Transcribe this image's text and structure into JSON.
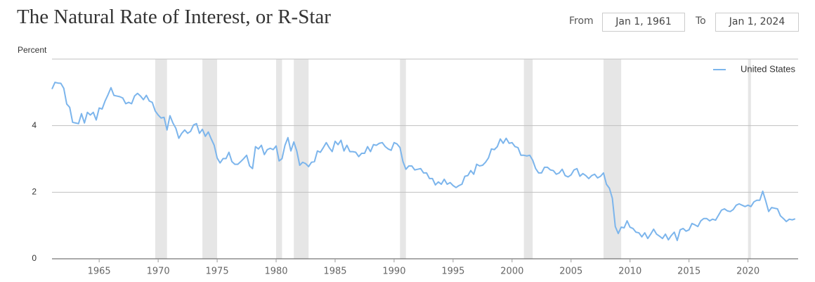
{
  "chart_data": {
    "type": "line",
    "title": "The Natural Rate of Interest, or R-Star",
    "y_axis_label": "Percent",
    "controls": {
      "from_label": "From",
      "from_value": "Jan 1, 1961",
      "to_label": "To",
      "to_value": "Jan 1, 2024"
    },
    "x": [
      1961,
      1961.25,
      1961.5,
      1961.75,
      1962,
      1962.25,
      1962.5,
      1962.75,
      1963,
      1963.25,
      1963.5,
      1963.75,
      1964,
      1964.25,
      1964.5,
      1964.75,
      1965,
      1965.25,
      1965.5,
      1965.75,
      1966,
      1966.25,
      1966.5,
      1966.75,
      1967,
      1967.25,
      1967.5,
      1967.75,
      1968,
      1968.25,
      1968.5,
      1968.75,
      1969,
      1969.25,
      1969.5,
      1969.75,
      1970,
      1970.25,
      1970.5,
      1970.75,
      1971,
      1971.25,
      1971.5,
      1971.75,
      1972,
      1972.25,
      1972.5,
      1972.75,
      1973,
      1973.25,
      1973.5,
      1973.75,
      1974,
      1974.25,
      1974.5,
      1974.75,
      1975,
      1975.25,
      1975.5,
      1975.75,
      1976,
      1976.25,
      1976.5,
      1976.75,
      1977,
      1977.25,
      1977.5,
      1977.75,
      1978,
      1978.25,
      1978.5,
      1978.75,
      1979,
      1979.25,
      1979.5,
      1979.75,
      1980,
      1980.25,
      1980.5,
      1980.75,
      1981,
      1981.25,
      1981.5,
      1981.75,
      1982,
      1982.25,
      1982.5,
      1982.75,
      1983,
      1983.25,
      1983.5,
      1983.75,
      1984,
      1984.25,
      1984.5,
      1984.75,
      1985,
      1985.25,
      1985.5,
      1985.75,
      1986,
      1986.25,
      1986.5,
      1986.75,
      1987,
      1987.25,
      1987.5,
      1987.75,
      1988,
      1988.25,
      1988.5,
      1988.75,
      1989,
      1989.25,
      1989.5,
      1989.75,
      1990,
      1990.25,
      1990.5,
      1990.75,
      1991,
      1991.25,
      1991.5,
      1991.75,
      1992,
      1992.25,
      1992.5,
      1992.75,
      1993,
      1993.25,
      1993.5,
      1993.75,
      1994,
      1994.25,
      1994.5,
      1994.75,
      1995,
      1995.25,
      1995.5,
      1995.75,
      1996,
      1996.25,
      1996.5,
      1996.75,
      1997,
      1997.25,
      1997.5,
      1997.75,
      1998,
      1998.25,
      1998.5,
      1998.75,
      1999,
      1999.25,
      1999.5,
      1999.75,
      2000,
      2000.25,
      2000.5,
      2000.75,
      2001,
      2001.25,
      2001.5,
      2001.75,
      2002,
      2002.25,
      2002.5,
      2002.75,
      2003,
      2003.25,
      2003.5,
      2003.75,
      2004,
      2004.25,
      2004.5,
      2004.75,
      2005,
      2005.25,
      2005.5,
      2005.75,
      2006,
      2006.25,
      2006.5,
      2006.75,
      2007,
      2007.25,
      2007.5,
      2007.75,
      2008,
      2008.25,
      2008.5,
      2008.75,
      2009,
      2009.25,
      2009.5,
      2009.75,
      2010,
      2010.25,
      2010.5,
      2010.75,
      2011,
      2011.25,
      2011.5,
      2011.75,
      2012,
      2012.25,
      2012.5,
      2012.75,
      2013,
      2013.25,
      2013.5,
      2013.75,
      2014,
      2014.25,
      2014.5,
      2014.75,
      2015,
      2015.25,
      2015.5,
      2015.75,
      2016,
      2016.25,
      2016.5,
      2016.75,
      2017,
      2017.25,
      2017.5,
      2017.75,
      2018,
      2018.25,
      2018.5,
      2018.75,
      2019,
      2019.25,
      2019.5,
      2019.75,
      2020,
      2020.25,
      2020.5,
      2020.75,
      2021,
      2021.25,
      2021.5,
      2021.75,
      2022,
      2022.25,
      2022.5,
      2022.75,
      2023,
      2023.25,
      2023.5,
      2023.75,
      2024
    ],
    "series": [
      {
        "name": "United States",
        "color": "#7cb5ec",
        "values": [
          5.1,
          5.3,
          5.28,
          5.27,
          5.12,
          4.65,
          4.55,
          4.1,
          4.08,
          4.06,
          4.36,
          4.08,
          4.4,
          4.32,
          4.4,
          4.17,
          4.53,
          4.5,
          4.74,
          4.93,
          5.14,
          4.91,
          4.89,
          4.87,
          4.83,
          4.66,
          4.7,
          4.66,
          4.89,
          4.97,
          4.89,
          4.78,
          4.91,
          4.74,
          4.7,
          4.44,
          4.32,
          4.23,
          4.25,
          3.87,
          4.3,
          4.08,
          3.92,
          3.62,
          3.77,
          3.87,
          3.77,
          3.83,
          4.02,
          4.06,
          3.77,
          3.89,
          3.68,
          3.81,
          3.6,
          3.41,
          3.03,
          2.88,
          3.01,
          3.01,
          3.2,
          2.92,
          2.84,
          2.84,
          2.92,
          3.01,
          3.11,
          2.79,
          2.71,
          3.37,
          3.3,
          3.41,
          3.13,
          3.28,
          3.32,
          3.28,
          3.39,
          2.94,
          3.01,
          3.41,
          3.64,
          3.24,
          3.51,
          3.24,
          2.81,
          2.9,
          2.86,
          2.77,
          2.9,
          2.92,
          3.24,
          3.2,
          3.34,
          3.49,
          3.34,
          3.22,
          3.53,
          3.43,
          3.56,
          3.24,
          3.41,
          3.22,
          3.22,
          3.2,
          3.07,
          3.17,
          3.17,
          3.37,
          3.22,
          3.43,
          3.41,
          3.47,
          3.49,
          3.37,
          3.3,
          3.26,
          3.49,
          3.45,
          3.34,
          2.92,
          2.69,
          2.79,
          2.79,
          2.67,
          2.69,
          2.71,
          2.58,
          2.58,
          2.41,
          2.41,
          2.22,
          2.31,
          2.24,
          2.39,
          2.24,
          2.29,
          2.2,
          2.14,
          2.2,
          2.24,
          2.48,
          2.5,
          2.65,
          2.54,
          2.84,
          2.79,
          2.81,
          2.9,
          3.03,
          3.3,
          3.28,
          3.37,
          3.6,
          3.47,
          3.62,
          3.47,
          3.49,
          3.37,
          3.34,
          3.11,
          3.11,
          3.09,
          3.11,
          2.96,
          2.71,
          2.58,
          2.58,
          2.75,
          2.75,
          2.67,
          2.65,
          2.54,
          2.58,
          2.69,
          2.5,
          2.46,
          2.52,
          2.67,
          2.71,
          2.48,
          2.56,
          2.5,
          2.41,
          2.5,
          2.54,
          2.43,
          2.48,
          2.58,
          2.24,
          2.12,
          1.82,
          0.97,
          0.76,
          0.95,
          0.93,
          1.14,
          0.95,
          0.91,
          0.8,
          0.78,
          0.66,
          0.78,
          0.61,
          0.74,
          0.89,
          0.74,
          0.68,
          0.61,
          0.74,
          0.57,
          0.7,
          0.8,
          0.55,
          0.87,
          0.91,
          0.83,
          0.87,
          1.06,
          1.02,
          0.97,
          1.14,
          1.21,
          1.21,
          1.14,
          1.19,
          1.16,
          1.31,
          1.46,
          1.5,
          1.44,
          1.42,
          1.48,
          1.61,
          1.65,
          1.61,
          1.57,
          1.61,
          1.57,
          1.71,
          1.76,
          1.76,
          2.03,
          1.74,
          1.42,
          1.54,
          1.52,
          1.5,
          1.29,
          1.21,
          1.12,
          1.19,
          1.17,
          1.2
        ]
      }
    ],
    "shaded_ranges": [
      [
        1969.75,
        1970.75
      ],
      [
        1973.75,
        1975
      ],
      [
        1980,
        1980.5
      ],
      [
        1981.5,
        1982.75
      ],
      [
        1990.5,
        1991
      ],
      [
        2001,
        2001.75
      ],
      [
        2007.75,
        2009.25
      ],
      [
        2020,
        2020.25
      ]
    ],
    "shade_color": "#e6e6e6",
    "xlim": [
      1961,
      2024.25
    ],
    "xticks": [
      1965,
      1970,
      1975,
      1980,
      1985,
      1990,
      1995,
      2000,
      2005,
      2010,
      2015,
      2020
    ],
    "ylim": [
      0,
      6
    ],
    "yticks": [
      0,
      2,
      4
    ],
    "grid": true,
    "legend": "top-right"
  }
}
